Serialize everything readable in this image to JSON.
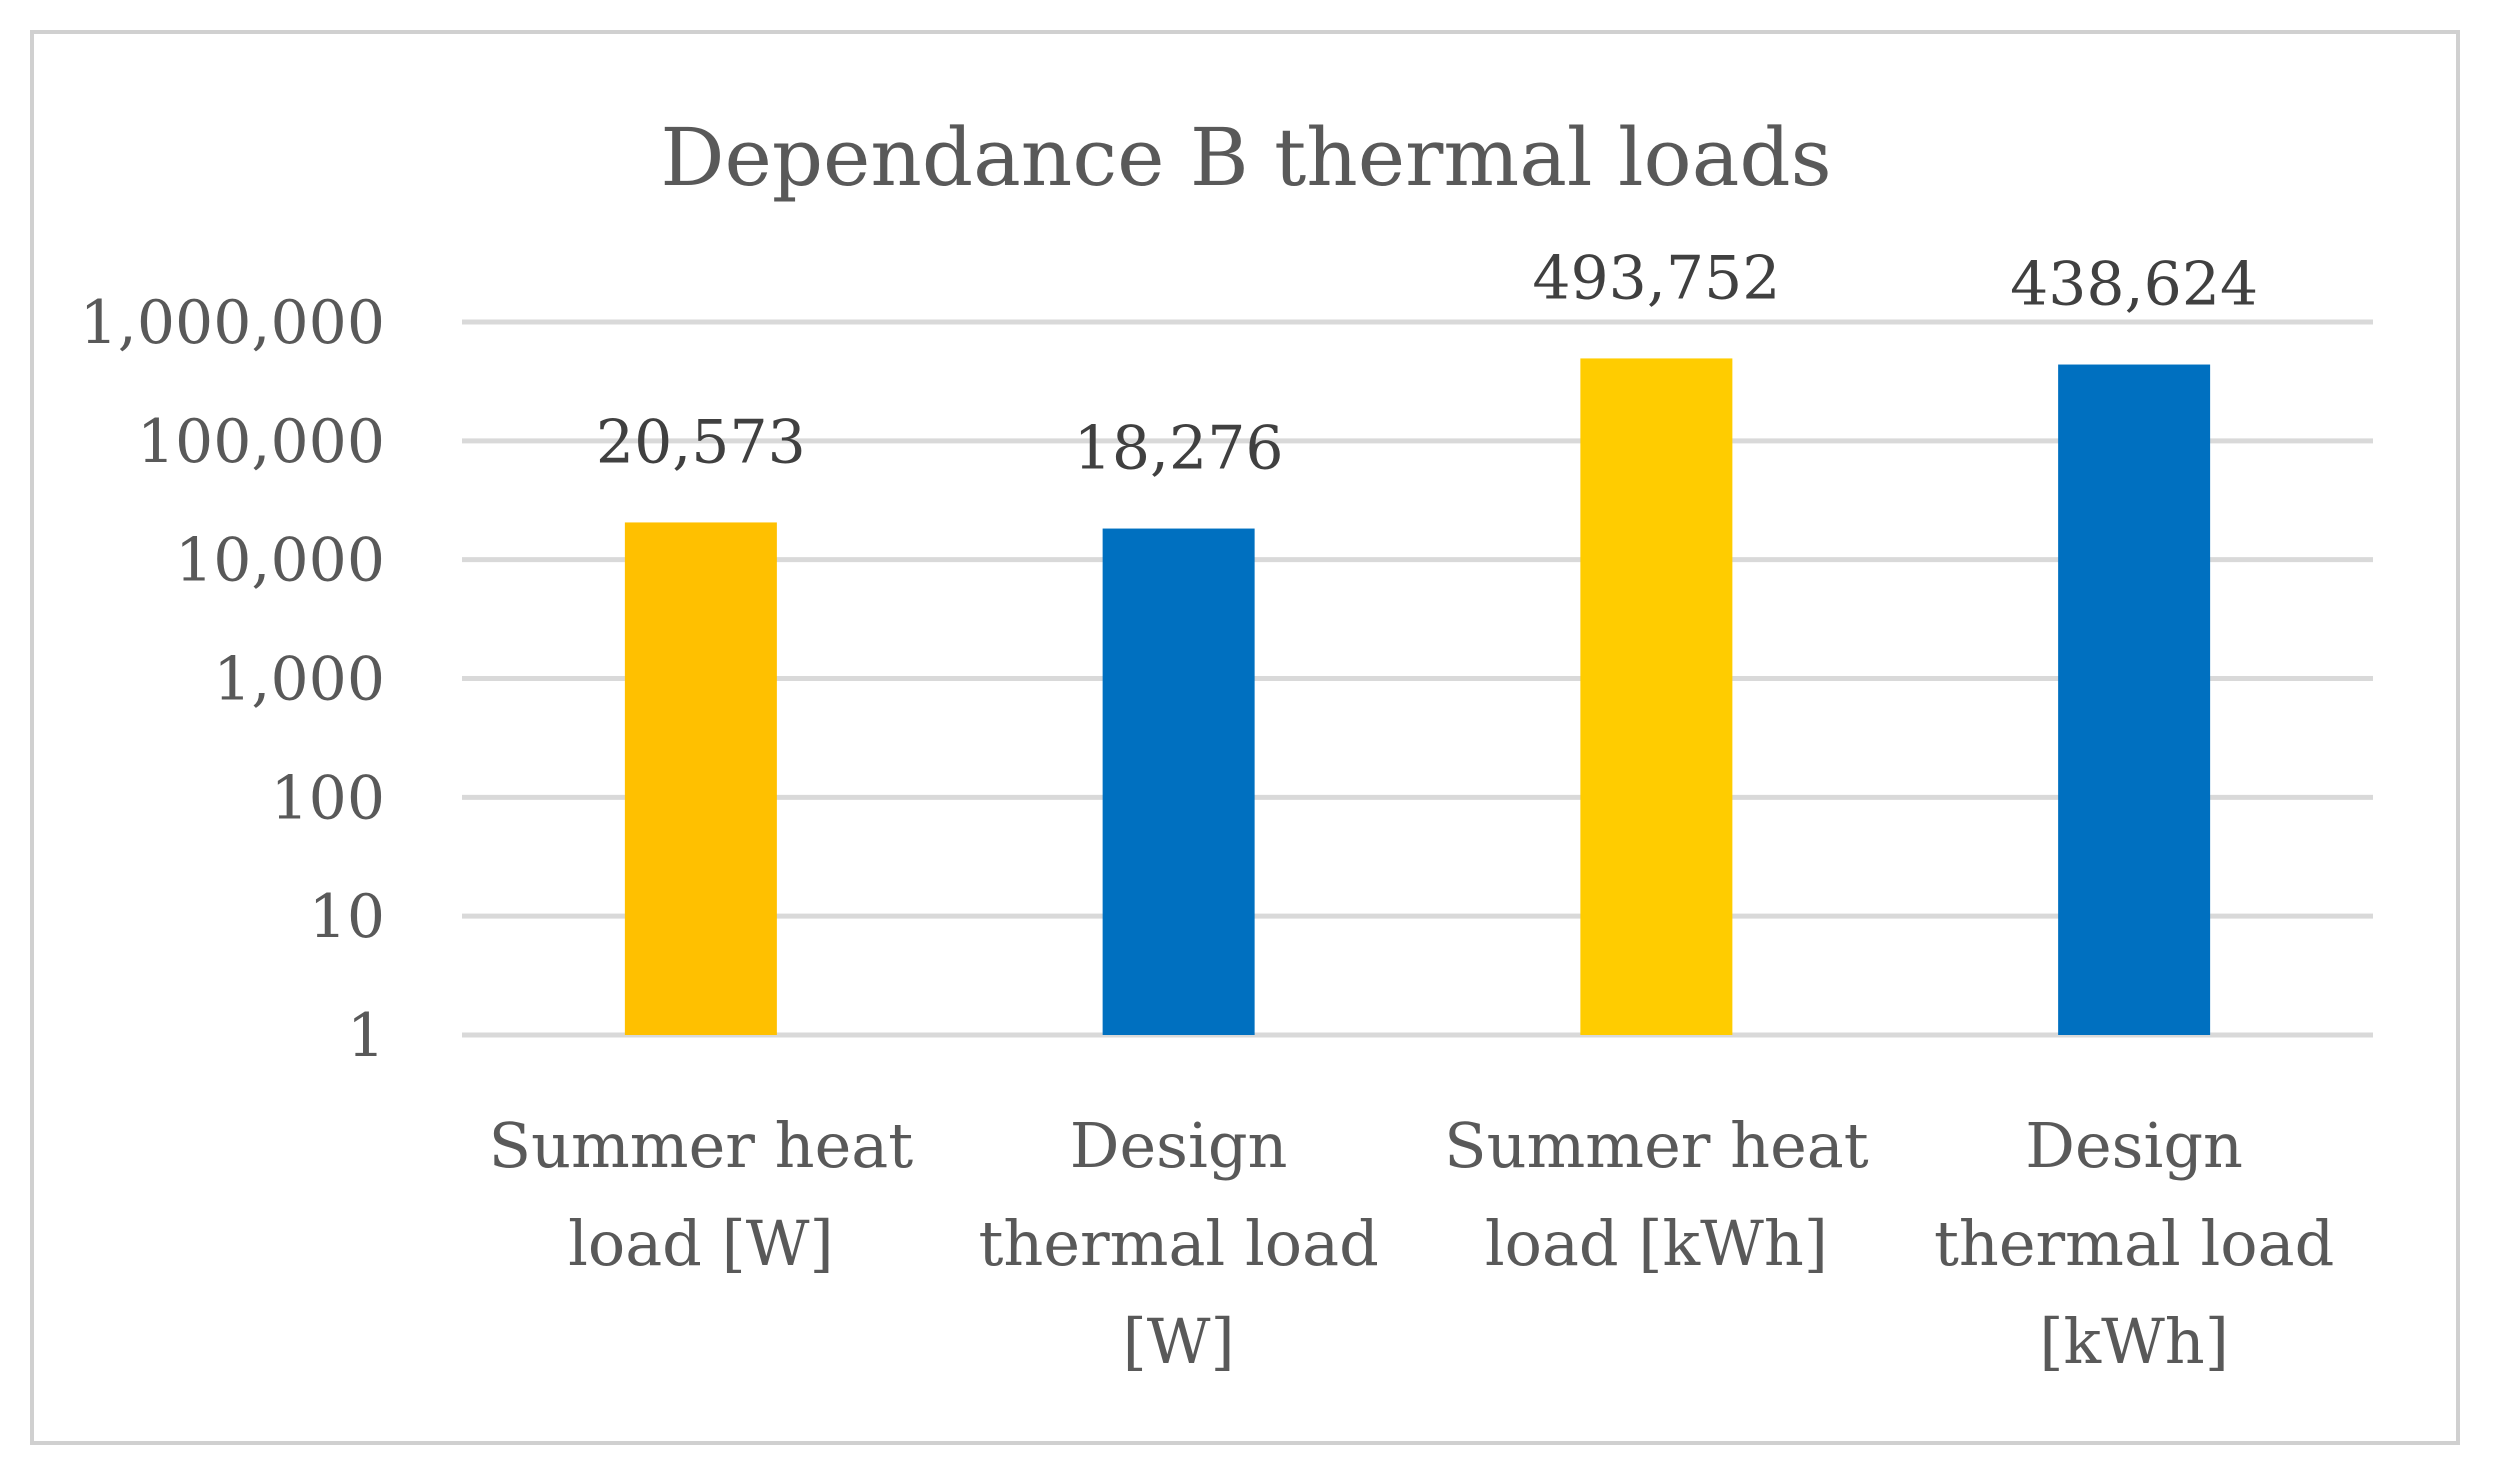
{
  "chart_data": {
    "type": "bar",
    "title": "Dependance B thermal loads",
    "y_scale": "log",
    "ylim": [
      1,
      1000000
    ],
    "y_ticks": [
      1,
      10,
      100,
      1000,
      10000,
      100000,
      1000000
    ],
    "y_tick_labels": [
      "1",
      "10",
      "100",
      "1,000",
      "10,000",
      "100,000",
      "1,000,000"
    ],
    "grid": true,
    "legend": "none",
    "categories": [
      [
        "Summer heat",
        "load [W]"
      ],
      [
        "Design",
        "thermal load",
        "[W]"
      ],
      [
        "Summer heat",
        "load [kWh]"
      ],
      [
        "Design",
        "thermal load",
        "[kWh]"
      ]
    ],
    "values": [
      20573,
      18276,
      493752,
      438624
    ],
    "value_labels": [
      "20,573",
      "18,276",
      "493,752",
      "438,624"
    ],
    "bar_colors": [
      "#FFC000",
      "#0070C0",
      "#FFCC00",
      "#0070C0"
    ]
  }
}
